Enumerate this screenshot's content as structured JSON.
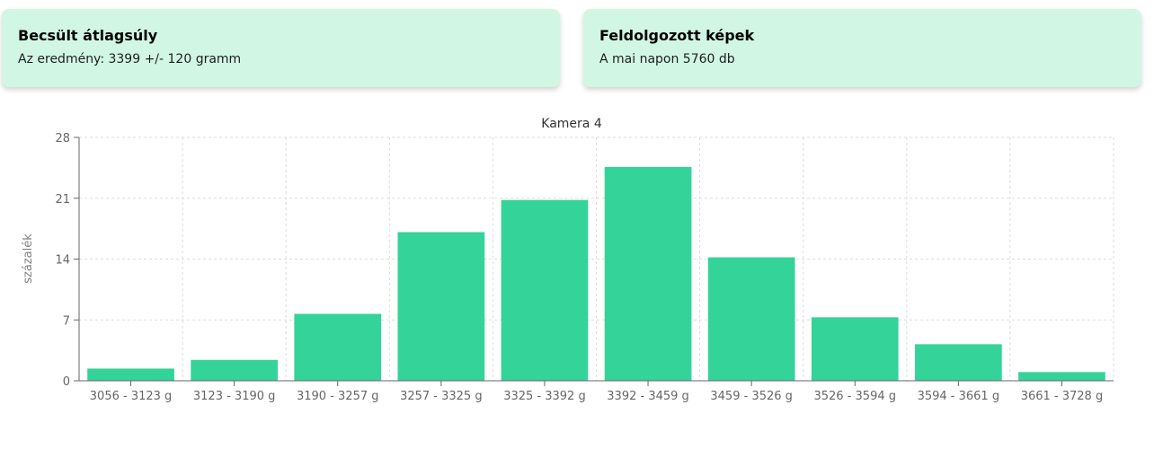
{
  "cards": [
    {
      "title": "Becsült átlagsúly",
      "text": "Az eredmény: 3399 +/- 120 gramm"
    },
    {
      "title": "Feldolgozott képek",
      "text": "A mai napon 5760 db"
    }
  ],
  "colors": {
    "card_bg": "#d1f7e4",
    "bar": "#34d399",
    "grid": "#dddddd",
    "axis": "#666666"
  },
  "chart_data": {
    "type": "bar",
    "title": "Kamera 4",
    "xlabel": "",
    "ylabel": "százalék",
    "categories": [
      "3056 - 3123 g",
      "3123 - 3190 g",
      "3190 - 3257 g",
      "3257 - 3325 g",
      "3325 - 3392 g",
      "3392 - 3459 g",
      "3459 - 3526 g",
      "3526 - 3594 g",
      "3594 - 3661 g",
      "3661 - 3728 g"
    ],
    "values": [
      1.4,
      2.4,
      7.7,
      17.1,
      20.8,
      24.6,
      14.2,
      7.3,
      4.2,
      1.0
    ],
    "ylim": [
      0,
      28
    ],
    "yticks": [
      0,
      7,
      14,
      21,
      28
    ],
    "grid": true,
    "legend": "none"
  }
}
